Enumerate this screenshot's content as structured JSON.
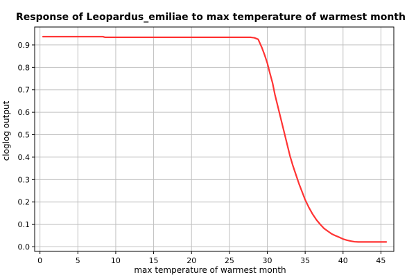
{
  "chart_data": {
    "type": "line",
    "title": "Response of Leopardus_emiliae to max temperature of warmest month",
    "xlabel": "max temperature of warmest month",
    "ylabel": "cloglog output",
    "xlim": [
      -0.7,
      46.7
    ],
    "ylim": [
      -0.02,
      0.98
    ],
    "xticks": [
      0,
      5,
      10,
      15,
      20,
      25,
      30,
      35,
      40,
      45
    ],
    "yticks": [
      0.0,
      0.1,
      0.2,
      0.3,
      0.4,
      0.5,
      0.6,
      0.7,
      0.8,
      0.9
    ],
    "ytick_labels": [
      "0.0",
      "0.1",
      "0.2",
      "0.3",
      "0.4",
      "0.5",
      "0.6",
      "0.7",
      "0.8",
      "0.9"
    ],
    "grid": true,
    "series": [
      {
        "color": "#ff3333",
        "x": [
          0.4,
          8.3,
          8.6,
          27.8,
          28.3,
          28.8,
          29.0,
          29.3,
          29.6,
          30.0,
          30.3,
          30.7,
          31.0,
          31.4,
          31.8,
          32.2,
          32.6,
          33.0,
          33.4,
          33.8,
          34.2,
          34.6,
          35.0,
          35.5,
          36.0,
          36.5,
          37.0,
          37.5,
          38.0,
          38.5,
          39.0,
          39.5,
          40.0,
          40.5,
          41.0,
          41.5,
          42.0,
          45.7
        ],
        "y": [
          0.937,
          0.937,
          0.934,
          0.934,
          0.932,
          0.925,
          0.91,
          0.887,
          0.86,
          0.82,
          0.78,
          0.73,
          0.68,
          0.625,
          0.57,
          0.515,
          0.46,
          0.405,
          0.36,
          0.32,
          0.28,
          0.245,
          0.21,
          0.175,
          0.145,
          0.12,
          0.1,
          0.082,
          0.07,
          0.058,
          0.05,
          0.043,
          0.035,
          0.03,
          0.026,
          0.023,
          0.022,
          0.022
        ]
      }
    ]
  }
}
